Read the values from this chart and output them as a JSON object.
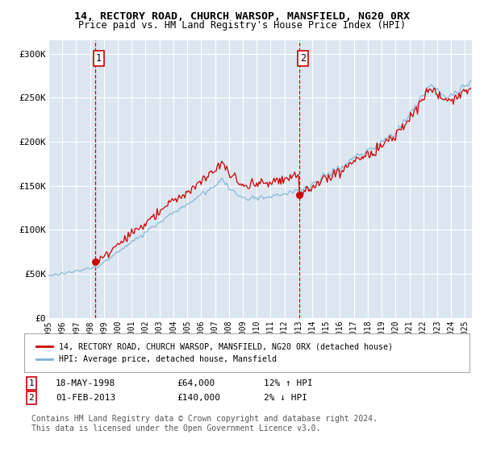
{
  "title": "14, RECTORY ROAD, CHURCH WARSOP, MANSFIELD, NG20 0RX",
  "subtitle": "Price paid vs. HM Land Registry's House Price Index (HPI)",
  "legend_line1": "14, RECTORY ROAD, CHURCH WARSOP, MANSFIELD, NG20 0RX (detached house)",
  "legend_line2": "HPI: Average price, detached house, Mansfield",
  "annotation1_label": "1",
  "annotation1_date": "18-MAY-1998",
  "annotation1_price": "£64,000",
  "annotation1_hpi": "12% ↑ HPI",
  "annotation1_year": 1998.38,
  "annotation1_value": 64000,
  "annotation2_label": "2",
  "annotation2_date": "01-FEB-2013",
  "annotation2_price": "£140,000",
  "annotation2_hpi": "2% ↓ HPI",
  "annotation2_year": 2013.08,
  "annotation2_value": 140000,
  "ylabel_ticks": [
    "£0",
    "£50K",
    "£100K",
    "£150K",
    "£200K",
    "£250K",
    "£300K"
  ],
  "ytick_values": [
    0,
    50000,
    100000,
    150000,
    200000,
    250000,
    300000
  ],
  "ylim": [
    0,
    315000
  ],
  "background_color": "#dce6f1",
  "plot_bg_color": "#dce6f1",
  "grid_color": "#ffffff",
  "line_color_red": "#cc0000",
  "line_color_blue": "#7fb3d3",
  "dashed_color": "#cc0000",
  "footer": "Contains HM Land Registry data © Crown copyright and database right 2024.\nThis data is licensed under the Open Government Licence v3.0.",
  "copyright_fontsize": 7.0
}
